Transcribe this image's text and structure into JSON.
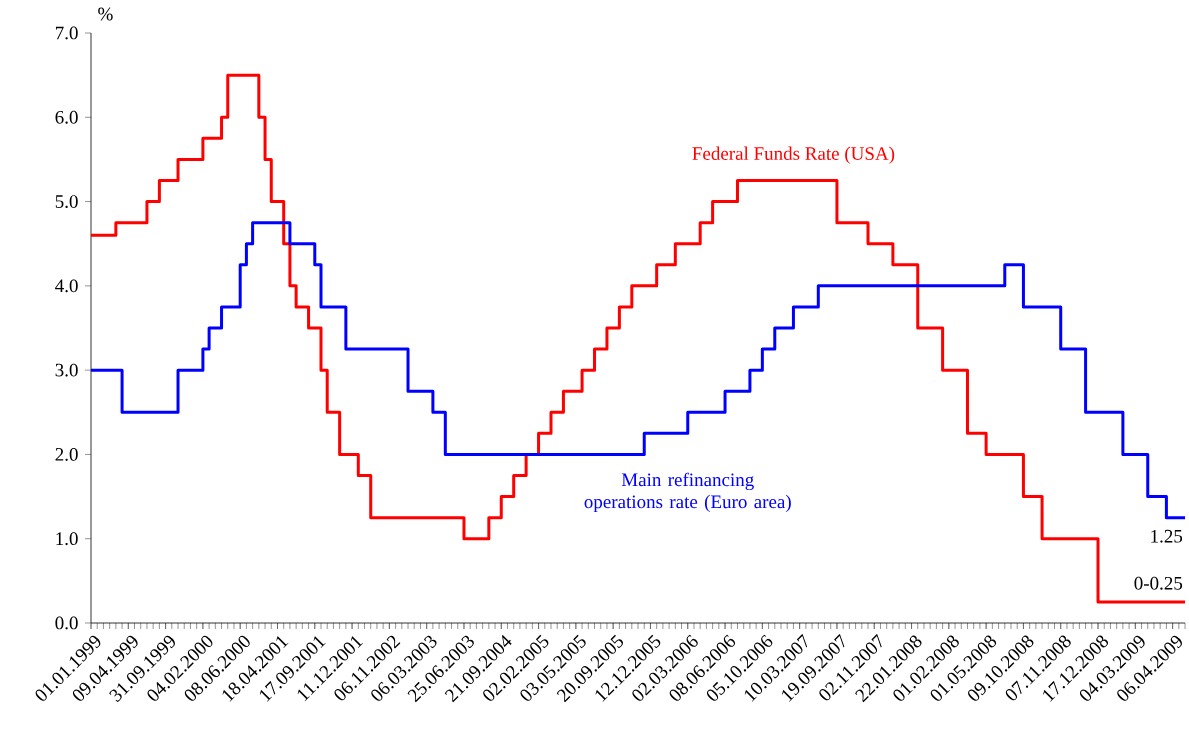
{
  "chart_data": {
    "type": "step",
    "categories": [
      "01.01.1999",
      null,
      null,
      null,
      null,
      null,
      "09.04.1999",
      null,
      null,
      null,
      null,
      null,
      "31.09.1999",
      null,
      null,
      null,
      null,
      null,
      "04.02.2000",
      null,
      null,
      null,
      null,
      null,
      "08.06.2000",
      null,
      null,
      null,
      null,
      null,
      "18.04.2001",
      null,
      null,
      null,
      null,
      null,
      "17.09.2001",
      null,
      null,
      null,
      null,
      null,
      "11.12.2001",
      null,
      null,
      null,
      null,
      null,
      "06.11.2002",
      null,
      null,
      null,
      null,
      null,
      "06.03.2003",
      null,
      null,
      null,
      null,
      null,
      "25.06.2003",
      null,
      null,
      null,
      null,
      null,
      "21.09.2004",
      null,
      null,
      null,
      null,
      null,
      "02.02.2005",
      null,
      null,
      null,
      null,
      null,
      "03.05.2005",
      null,
      null,
      null,
      null,
      null,
      "20.09.2005",
      null,
      null,
      null,
      null,
      null,
      "12.12.2005",
      null,
      null,
      null,
      null,
      null,
      "02.03.2006",
      null,
      null,
      null,
      null,
      null,
      "08.06.2006",
      null,
      null,
      null,
      null,
      null,
      "05.10.2006",
      null,
      null,
      null,
      null,
      null,
      "10.03.2007",
      null,
      null,
      null,
      null,
      null,
      "19.09.2007",
      null,
      null,
      null,
      null,
      null,
      "02.11.2007",
      null,
      null,
      null,
      null,
      null,
      "22.01.2008",
      null,
      null,
      null,
      null,
      null,
      "01.02.2008",
      null,
      null,
      null,
      null,
      null,
      "01.05.2008",
      null,
      null,
      null,
      null,
      null,
      "09.10.2008",
      null,
      null,
      null,
      null,
      null,
      "07.11.2008",
      null,
      null,
      null,
      null,
      null,
      "17.12.2008",
      null,
      null,
      null,
      null,
      null,
      "04.03.2009",
      null,
      null,
      null,
      null,
      null,
      "06.04.2009",
      null,
      null
    ],
    "series": [
      {
        "name": "Federal Funds Rate (USA)",
        "color": "#ff0000",
        "values": [
          4.6,
          4.6,
          4.6,
          4.6,
          4.75,
          4.75,
          4.75,
          4.75,
          4.75,
          5.0,
          5.0,
          5.25,
          5.25,
          5.25,
          5.5,
          5.5,
          5.5,
          5.5,
          5.75,
          5.75,
          5.75,
          6.0,
          6.5,
          6.5,
          6.5,
          6.5,
          6.5,
          6.0,
          5.5,
          5.0,
          5.0,
          4.5,
          4.0,
          3.75,
          3.75,
          3.5,
          3.5,
          3.0,
          2.5,
          2.5,
          2.0,
          2.0,
          2.0,
          1.75,
          1.75,
          1.25,
          1.25,
          1.25,
          1.25,
          1.25,
          1.25,
          1.25,
          1.25,
          1.25,
          1.25,
          1.25,
          1.25,
          1.25,
          1.25,
          1.25,
          1.0,
          1.0,
          1.0,
          1.0,
          1.25,
          1.25,
          1.5,
          1.5,
          1.75,
          1.75,
          2.0,
          2.0,
          2.25,
          2.25,
          2.5,
          2.5,
          2.75,
          2.75,
          2.75,
          3.0,
          3.0,
          3.25,
          3.25,
          3.5,
          3.5,
          3.75,
          3.75,
          4.0,
          4.0,
          4.0,
          4.0,
          4.25,
          4.25,
          4.25,
          4.5,
          4.5,
          4.5,
          4.5,
          4.75,
          4.75,
          5.0,
          5.0,
          5.0,
          5.0,
          5.25,
          5.25,
          5.25,
          5.25,
          5.25,
          5.25,
          5.25,
          5.25,
          5.25,
          5.25,
          5.25,
          5.25,
          5.25,
          5.25,
          5.25,
          5.25,
          4.75,
          4.75,
          4.75,
          4.75,
          4.75,
          4.5,
          4.5,
          4.5,
          4.5,
          4.25,
          4.25,
          4.25,
          4.25,
          3.5,
          3.5,
          3.5,
          3.5,
          3.0,
          3.0,
          3.0,
          3.0,
          2.25,
          2.25,
          2.25,
          2.0,
          2.0,
          2.0,
          2.0,
          2.0,
          2.0,
          1.5,
          1.5,
          1.5,
          1.0,
          1.0,
          1.0,
          1.0,
          1.0,
          1.0,
          1.0,
          1.0,
          1.0,
          0.25,
          0.25,
          0.25,
          0.25,
          0.25,
          0.25,
          0.25,
          0.25,
          0.25,
          0.25,
          0.25,
          0.25,
          0.25,
          0.25,
          0.25
        ]
      },
      {
        "name": "Main refinancing operations rate (Euro area)",
        "color": "#0000ff",
        "values": [
          3.0,
          3.0,
          3.0,
          3.0,
          3.0,
          2.5,
          2.5,
          2.5,
          2.5,
          2.5,
          2.5,
          2.5,
          2.5,
          2.5,
          3.0,
          3.0,
          3.0,
          3.0,
          3.25,
          3.5,
          3.5,
          3.75,
          3.75,
          3.75,
          4.25,
          4.5,
          4.75,
          4.75,
          4.75,
          4.75,
          4.75,
          4.75,
          4.5,
          4.5,
          4.5,
          4.5,
          4.25,
          3.75,
          3.75,
          3.75,
          3.75,
          3.25,
          3.25,
          3.25,
          3.25,
          3.25,
          3.25,
          3.25,
          3.25,
          3.25,
          3.25,
          2.75,
          2.75,
          2.75,
          2.75,
          2.5,
          2.5,
          2.0,
          2.0,
          2.0,
          2.0,
          2.0,
          2.0,
          2.0,
          2.0,
          2.0,
          2.0,
          2.0,
          2.0,
          2.0,
          2.0,
          2.0,
          2.0,
          2.0,
          2.0,
          2.0,
          2.0,
          2.0,
          2.0,
          2.0,
          2.0,
          2.0,
          2.0,
          2.0,
          2.0,
          2.0,
          2.0,
          2.0,
          2.0,
          2.25,
          2.25,
          2.25,
          2.25,
          2.25,
          2.25,
          2.25,
          2.5,
          2.5,
          2.5,
          2.5,
          2.5,
          2.5,
          2.75,
          2.75,
          2.75,
          2.75,
          3.0,
          3.0,
          3.25,
          3.25,
          3.5,
          3.5,
          3.5,
          3.75,
          3.75,
          3.75,
          3.75,
          4.0,
          4.0,
          4.0,
          4.0,
          4.0,
          4.0,
          4.0,
          4.0,
          4.0,
          4.0,
          4.0,
          4.0,
          4.0,
          4.0,
          4.0,
          4.0,
          4.0,
          4.0,
          4.0,
          4.0,
          4.0,
          4.0,
          4.0,
          4.0,
          4.0,
          4.0,
          4.0,
          4.0,
          4.0,
          4.0,
          4.25,
          4.25,
          4.25,
          3.75,
          3.75,
          3.75,
          3.75,
          3.75,
          3.75,
          3.25,
          3.25,
          3.25,
          3.25,
          2.5,
          2.5,
          2.5,
          2.5,
          2.5,
          2.5,
          2.0,
          2.0,
          2.0,
          2.0,
          1.5,
          1.5,
          1.5,
          1.25,
          1.25,
          1.25,
          1.25
        ]
      }
    ],
    "ylabel": "%",
    "ylim": [
      0,
      7
    ],
    "yticks": [
      {
        "value": 0,
        "label": "0.0"
      },
      {
        "value": 1,
        "label": "1.0"
      },
      {
        "value": 2,
        "label": "2.0"
      },
      {
        "value": 3,
        "label": "3.0"
      },
      {
        "value": 4,
        "label": "4.0"
      },
      {
        "value": 5,
        "label": "5.0"
      },
      {
        "value": 6,
        "label": "6.0"
      },
      {
        "value": 7,
        "label": "7.0"
      }
    ],
    "annotations": [
      {
        "text": "1.25",
        "y": 1.25
      },
      {
        "text": "0-0.25",
        "y": 0.25
      }
    ],
    "legend": false,
    "grid": false
  }
}
